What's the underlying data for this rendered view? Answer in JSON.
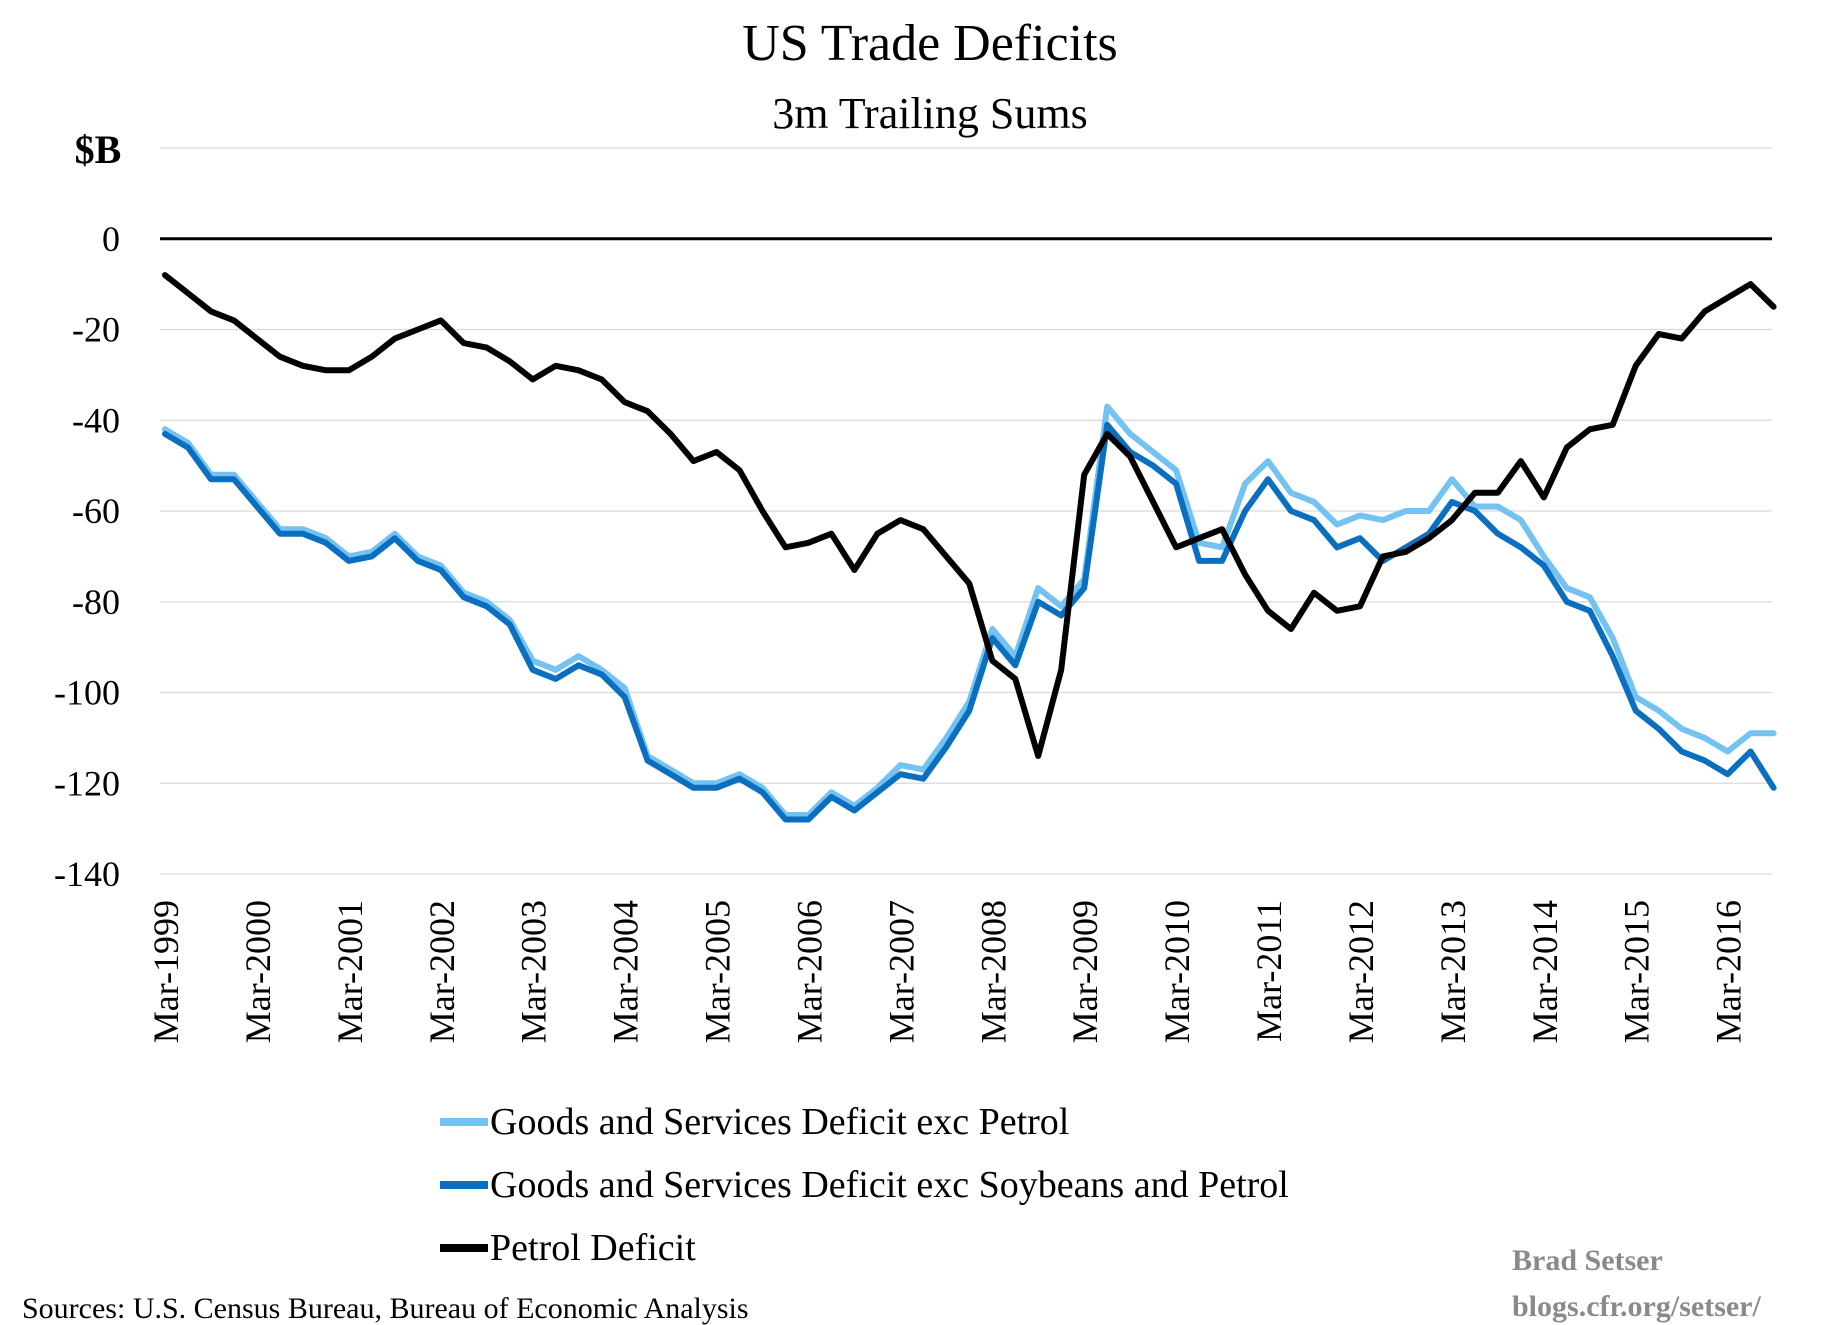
{
  "colors": {
    "light_blue": "#74c2f2",
    "dark_blue": "#0a6fbf",
    "black": "#000000",
    "grid": "#d9d9d9",
    "credit_gray": "#8a8a8a"
  },
  "footer": {
    "sources": "Sources: U.S. Census Bureau, Bureau of Economic Analysis",
    "credit_line1": "Brad Setser",
    "credit_line2": "blogs.cfr.org/setser/"
  },
  "chart_data": {
    "type": "line",
    "title": "US Trade Deficits",
    "subtitle": "3m Trailing Sums",
    "ylabel": "$B",
    "ylim": [
      -140,
      20
    ],
    "yticks": [
      "0",
      "-20",
      "-40",
      "-60",
      "-80",
      "-100",
      "-120",
      "-140"
    ],
    "grid": true,
    "legend_position": "bottom",
    "x_start": "1999-03",
    "x_end": "2016-09",
    "xticks": [
      "Mar-1999",
      "Mar-2000",
      "Mar-2001",
      "Mar-2002",
      "Mar-2003",
      "Mar-2004",
      "Mar-2005",
      "Mar-2006",
      "Mar-2007",
      "Mar-2008",
      "Mar-2009",
      "Mar-2010",
      "Mar-2011",
      "Mar-2012",
      "Mar-2013",
      "Mar-2014",
      "Mar-2015",
      "Mar-2016"
    ],
    "series": [
      {
        "name": "Goods and Services Deficit exc Petrol",
        "color": "#74c2f2",
        "points": [
          [
            "1999-03",
            -42
          ],
          [
            "1999-06",
            -45
          ],
          [
            "1999-09",
            -52
          ],
          [
            "1999-12",
            -52
          ],
          [
            "2000-03",
            -58
          ],
          [
            "2000-06",
            -64
          ],
          [
            "2000-09",
            -64
          ],
          [
            "2000-12",
            -66
          ],
          [
            "2001-03",
            -70
          ],
          [
            "2001-06",
            -69
          ],
          [
            "2001-09",
            -65
          ],
          [
            "2001-12",
            -70
          ],
          [
            "2002-03",
            -72
          ],
          [
            "2002-06",
            -78
          ],
          [
            "2002-09",
            -80
          ],
          [
            "2002-12",
            -84
          ],
          [
            "2003-03",
            -93
          ],
          [
            "2003-06",
            -95
          ],
          [
            "2003-09",
            -92
          ],
          [
            "2003-12",
            -95
          ],
          [
            "2004-03",
            -99
          ],
          [
            "2004-06",
            -114
          ],
          [
            "2004-09",
            -117
          ],
          [
            "2004-12",
            -120
          ],
          [
            "2005-03",
            -120
          ],
          [
            "2005-06",
            -118
          ],
          [
            "2005-09",
            -121
          ],
          [
            "2005-12",
            -127
          ],
          [
            "2006-03",
            -127
          ],
          [
            "2006-06",
            -122
          ],
          [
            "2006-09",
            -125
          ],
          [
            "2006-12",
            -121
          ],
          [
            "2007-03",
            -116
          ],
          [
            "2007-06",
            -117
          ],
          [
            "2007-09",
            -110
          ],
          [
            "2007-12",
            -102
          ],
          [
            "2008-03",
            -86
          ],
          [
            "2008-06",
            -92
          ],
          [
            "2008-09",
            -77
          ],
          [
            "2008-12",
            -81
          ],
          [
            "2009-03",
            -75
          ],
          [
            "2009-06",
            -37
          ],
          [
            "2009-09",
            -43
          ],
          [
            "2009-12",
            -47
          ],
          [
            "2010-03",
            -51
          ],
          [
            "2010-06",
            -67
          ],
          [
            "2010-09",
            -68
          ],
          [
            "2010-12",
            -54
          ],
          [
            "2011-03",
            -49
          ],
          [
            "2011-06",
            -56
          ],
          [
            "2011-09",
            -58
          ],
          [
            "2011-12",
            -63
          ],
          [
            "2012-03",
            -61
          ],
          [
            "2012-06",
            -62
          ],
          [
            "2012-09",
            -60
          ],
          [
            "2012-12",
            -60
          ],
          [
            "2013-03",
            -53
          ],
          [
            "2013-06",
            -59
          ],
          [
            "2013-09",
            -59
          ],
          [
            "2013-12",
            -62
          ],
          [
            "2014-03",
            -70
          ],
          [
            "2014-06",
            -77
          ],
          [
            "2014-09",
            -79
          ],
          [
            "2014-12",
            -88
          ],
          [
            "2015-03",
            -101
          ],
          [
            "2015-06",
            -104
          ],
          [
            "2015-09",
            -108
          ],
          [
            "2015-12",
            -110
          ],
          [
            "2016-03",
            -113
          ],
          [
            "2016-06",
            -109
          ],
          [
            "2016-09",
            -109
          ]
        ]
      },
      {
        "name": "Goods and Services Deficit exc Soybeans and Petrol",
        "color": "#0a6fbf",
        "points": [
          [
            "1999-03",
            -43
          ],
          [
            "1999-06",
            -46
          ],
          [
            "1999-09",
            -53
          ],
          [
            "1999-12",
            -53
          ],
          [
            "2000-03",
            -59
          ],
          [
            "2000-06",
            -65
          ],
          [
            "2000-09",
            -65
          ],
          [
            "2000-12",
            -67
          ],
          [
            "2001-03",
            -71
          ],
          [
            "2001-06",
            -70
          ],
          [
            "2001-09",
            -66
          ],
          [
            "2001-12",
            -71
          ],
          [
            "2002-03",
            -73
          ],
          [
            "2002-06",
            -79
          ],
          [
            "2002-09",
            -81
          ],
          [
            "2002-12",
            -85
          ],
          [
            "2003-03",
            -95
          ],
          [
            "2003-06",
            -97
          ],
          [
            "2003-09",
            -94
          ],
          [
            "2003-12",
            -96
          ],
          [
            "2004-03",
            -101
          ],
          [
            "2004-06",
            -115
          ],
          [
            "2004-09",
            -118
          ],
          [
            "2004-12",
            -121
          ],
          [
            "2005-03",
            -121
          ],
          [
            "2005-06",
            -119
          ],
          [
            "2005-09",
            -122
          ],
          [
            "2005-12",
            -128
          ],
          [
            "2006-03",
            -128
          ],
          [
            "2006-06",
            -123
          ],
          [
            "2006-09",
            -126
          ],
          [
            "2006-12",
            -122
          ],
          [
            "2007-03",
            -118
          ],
          [
            "2007-06",
            -119
          ],
          [
            "2007-09",
            -112
          ],
          [
            "2007-12",
            -104
          ],
          [
            "2008-03",
            -88
          ],
          [
            "2008-06",
            -94
          ],
          [
            "2008-09",
            -80
          ],
          [
            "2008-12",
            -83
          ],
          [
            "2009-03",
            -77
          ],
          [
            "2009-06",
            -41
          ],
          [
            "2009-09",
            -47
          ],
          [
            "2009-12",
            -50
          ],
          [
            "2010-03",
            -54
          ],
          [
            "2010-06",
            -71
          ],
          [
            "2010-09",
            -71
          ],
          [
            "2010-12",
            -60
          ],
          [
            "2011-03",
            -53
          ],
          [
            "2011-06",
            -60
          ],
          [
            "2011-09",
            -62
          ],
          [
            "2011-12",
            -68
          ],
          [
            "2012-03",
            -66
          ],
          [
            "2012-06",
            -71
          ],
          [
            "2012-09",
            -68
          ],
          [
            "2012-12",
            -65
          ],
          [
            "2013-03",
            -58
          ],
          [
            "2013-06",
            -60
          ],
          [
            "2013-09",
            -65
          ],
          [
            "2013-12",
            -68
          ],
          [
            "2014-03",
            -72
          ],
          [
            "2014-06",
            -80
          ],
          [
            "2014-09",
            -82
          ],
          [
            "2014-12",
            -92
          ],
          [
            "2015-03",
            -104
          ],
          [
            "2015-06",
            -108
          ],
          [
            "2015-09",
            -113
          ],
          [
            "2015-12",
            -115
          ],
          [
            "2016-03",
            -118
          ],
          [
            "2016-06",
            -113
          ],
          [
            "2016-09",
            -121
          ]
        ]
      },
      {
        "name": "Petrol Deficit",
        "color": "#000000",
        "points": [
          [
            "1999-03",
            -8
          ],
          [
            "1999-06",
            -12
          ],
          [
            "1999-09",
            -16
          ],
          [
            "1999-12",
            -18
          ],
          [
            "2000-03",
            -22
          ],
          [
            "2000-06",
            -26
          ],
          [
            "2000-09",
            -28
          ],
          [
            "2000-12",
            -29
          ],
          [
            "2001-03",
            -29
          ],
          [
            "2001-06",
            -26
          ],
          [
            "2001-09",
            -22
          ],
          [
            "2001-12",
            -20
          ],
          [
            "2002-03",
            -18
          ],
          [
            "2002-06",
            -23
          ],
          [
            "2002-09",
            -24
          ],
          [
            "2002-12",
            -27
          ],
          [
            "2003-03",
            -31
          ],
          [
            "2003-06",
            -28
          ],
          [
            "2003-09",
            -29
          ],
          [
            "2003-12",
            -31
          ],
          [
            "2004-03",
            -36
          ],
          [
            "2004-06",
            -38
          ],
          [
            "2004-09",
            -43
          ],
          [
            "2004-12",
            -49
          ],
          [
            "2005-03",
            -47
          ],
          [
            "2005-06",
            -51
          ],
          [
            "2005-09",
            -60
          ],
          [
            "2005-12",
            -68
          ],
          [
            "2006-03",
            -67
          ],
          [
            "2006-06",
            -65
          ],
          [
            "2006-09",
            -73
          ],
          [
            "2006-12",
            -65
          ],
          [
            "2007-03",
            -62
          ],
          [
            "2007-06",
            -64
          ],
          [
            "2007-09",
            -70
          ],
          [
            "2007-12",
            -76
          ],
          [
            "2008-03",
            -93
          ],
          [
            "2008-06",
            -97
          ],
          [
            "2008-09",
            -114
          ],
          [
            "2008-12",
            -95
          ],
          [
            "2009-03",
            -52
          ],
          [
            "2009-06",
            -43
          ],
          [
            "2009-09",
            -48
          ],
          [
            "2009-12",
            -58
          ],
          [
            "2010-03",
            -68
          ],
          [
            "2010-06",
            -66
          ],
          [
            "2010-09",
            -64
          ],
          [
            "2010-12",
            -74
          ],
          [
            "2011-03",
            -82
          ],
          [
            "2011-06",
            -86
          ],
          [
            "2011-09",
            -78
          ],
          [
            "2011-12",
            -82
          ],
          [
            "2012-03",
            -81
          ],
          [
            "2012-06",
            -70
          ],
          [
            "2012-09",
            -69
          ],
          [
            "2012-12",
            -66
          ],
          [
            "2013-03",
            -62
          ],
          [
            "2013-06",
            -56
          ],
          [
            "2013-09",
            -56
          ],
          [
            "2013-12",
            -49
          ],
          [
            "2014-03",
            -57
          ],
          [
            "2014-06",
            -46
          ],
          [
            "2014-09",
            -42
          ],
          [
            "2014-12",
            -41
          ],
          [
            "2015-03",
            -28
          ],
          [
            "2015-06",
            -21
          ],
          [
            "2015-09",
            -22
          ],
          [
            "2015-12",
            -16
          ],
          [
            "2016-03",
            -13
          ],
          [
            "2016-06",
            -10
          ],
          [
            "2016-09",
            -15
          ]
        ]
      }
    ]
  }
}
